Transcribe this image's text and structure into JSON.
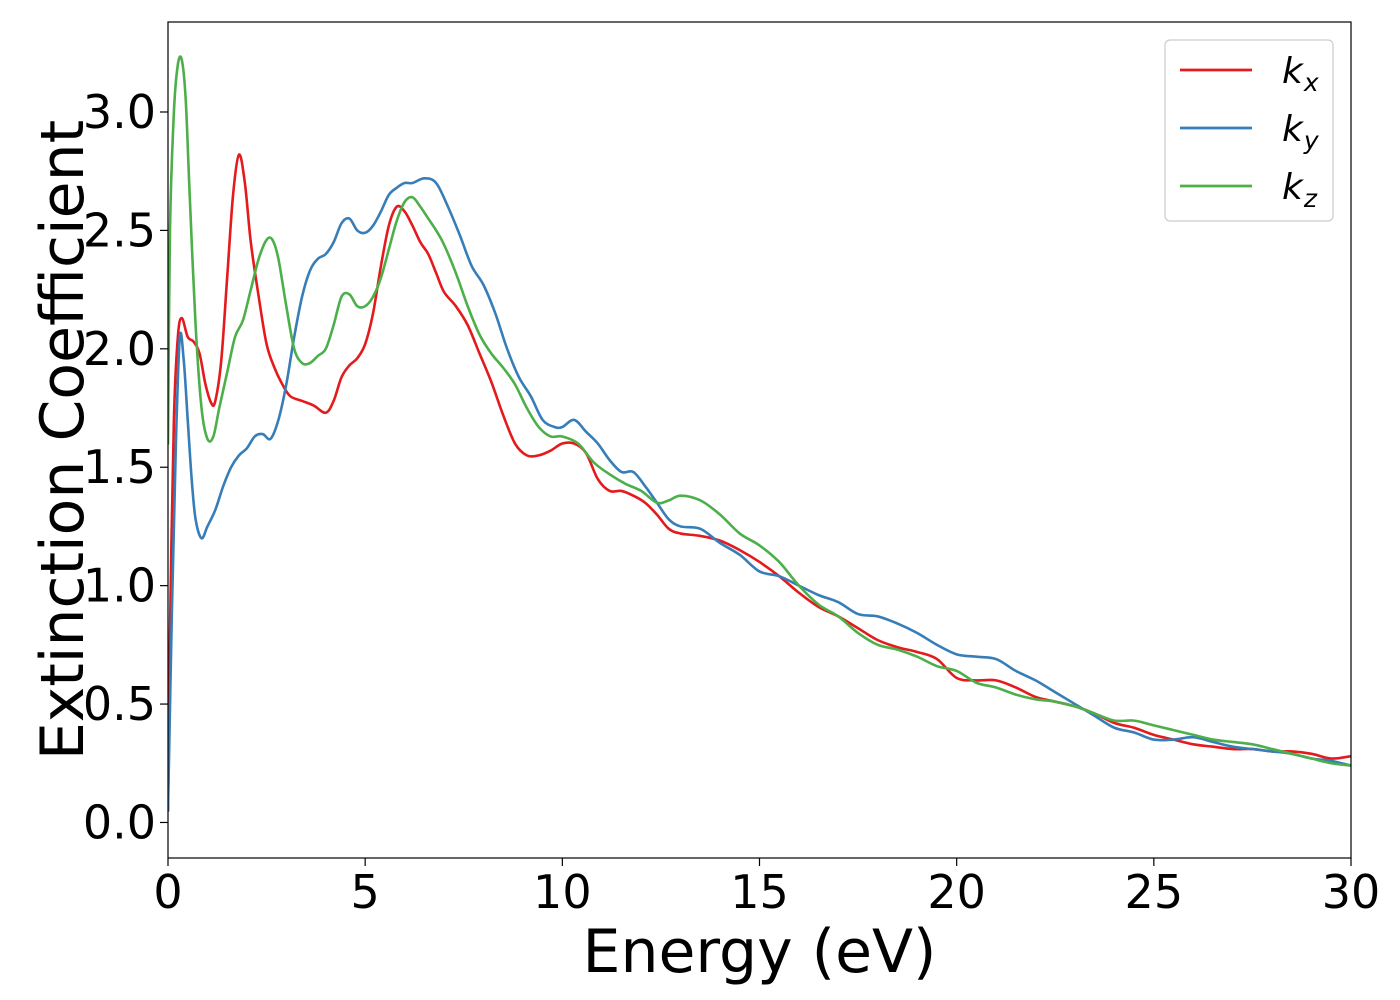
{
  "chart_data": {
    "type": "line",
    "title": "",
    "xlabel": "Energy (eV)",
    "ylabel": "Extinction Coefficient",
    "xlim": [
      0,
      30
    ],
    "ylim": [
      -0.15,
      3.38
    ],
    "xticks": [
      0,
      5,
      10,
      15,
      20,
      25,
      30
    ],
    "xtick_labels": [
      "0",
      "5",
      "10",
      "15",
      "20",
      "25",
      "30"
    ],
    "yticks": [
      0.0,
      0.5,
      1.0,
      1.5,
      2.0,
      2.5,
      3.0
    ],
    "ytick_labels": [
      "0.0",
      "0.5",
      "1.0",
      "1.5",
      "2.0",
      "2.5",
      "3.0"
    ],
    "grid": false,
    "legend_position": "top-right",
    "series": [
      {
        "name": "k_x",
        "label_base": "k",
        "label_sub": "x",
        "color": "#e41a1c",
        "x": [
          0,
          0.05,
          0.15,
          0.25,
          0.35,
          0.5,
          0.65,
          0.8,
          0.95,
          1.1,
          1.2,
          1.35,
          1.5,
          1.65,
          1.8,
          1.95,
          2.1,
          2.3,
          2.5,
          2.7,
          2.9,
          3.1,
          3.4,
          3.7,
          4.0,
          4.2,
          4.4,
          4.6,
          4.8,
          5.0,
          5.2,
          5.4,
          5.6,
          5.8,
          6.0,
          6.2,
          6.4,
          6.6,
          6.8,
          7.0,
          7.3,
          7.6,
          7.9,
          8.2,
          8.5,
          8.8,
          9.1,
          9.4,
          9.7,
          10.0,
          10.3,
          10.6,
          10.9,
          11.2,
          11.5,
          11.8,
          12.1,
          12.4,
          12.7,
          13.0,
          13.5,
          14.0,
          14.5,
          15.0,
          15.5,
          16.0,
          16.5,
          17.0,
          17.5,
          18.0,
          18.5,
          19.0,
          19.5,
          20.0,
          20.5,
          21.0,
          21.5,
          22.0,
          22.5,
          23.0,
          23.5,
          24.0,
          24.5,
          25.0,
          25.5,
          26.0,
          26.5,
          27.0,
          27.5,
          28.0,
          28.5,
          29.0,
          29.5,
          30.0
        ],
        "y": [
          0.05,
          0.8,
          1.7,
          2.05,
          2.13,
          2.05,
          2.03,
          1.98,
          1.85,
          1.77,
          1.78,
          1.95,
          2.3,
          2.65,
          2.82,
          2.7,
          2.45,
          2.22,
          2.02,
          1.92,
          1.85,
          1.8,
          1.78,
          1.76,
          1.73,
          1.78,
          1.88,
          1.93,
          1.96,
          2.02,
          2.15,
          2.35,
          2.52,
          2.6,
          2.58,
          2.52,
          2.45,
          2.4,
          2.32,
          2.24,
          2.18,
          2.1,
          1.98,
          1.86,
          1.72,
          1.6,
          1.55,
          1.55,
          1.57,
          1.6,
          1.6,
          1.56,
          1.45,
          1.4,
          1.4,
          1.38,
          1.35,
          1.3,
          1.24,
          1.22,
          1.21,
          1.19,
          1.15,
          1.1,
          1.04,
          0.97,
          0.91,
          0.87,
          0.82,
          0.77,
          0.74,
          0.72,
          0.69,
          0.61,
          0.6,
          0.6,
          0.57,
          0.53,
          0.51,
          0.49,
          0.46,
          0.42,
          0.4,
          0.37,
          0.35,
          0.33,
          0.32,
          0.31,
          0.31,
          0.3,
          0.3,
          0.29,
          0.27,
          0.28
        ]
      },
      {
        "name": "k_y",
        "label_base": "k",
        "label_sub": "y",
        "color": "#377eb8",
        "x": [
          0,
          0.1,
          0.2,
          0.3,
          0.4,
          0.5,
          0.6,
          0.7,
          0.85,
          1.0,
          1.2,
          1.4,
          1.6,
          1.8,
          2.0,
          2.2,
          2.4,
          2.6,
          2.8,
          3.0,
          3.2,
          3.4,
          3.6,
          3.8,
          4.0,
          4.2,
          4.4,
          4.6,
          4.8,
          5.0,
          5.2,
          5.4,
          5.6,
          5.8,
          6.0,
          6.2,
          6.5,
          6.8,
          7.1,
          7.4,
          7.7,
          8.0,
          8.3,
          8.6,
          8.9,
          9.2,
          9.5,
          9.8,
          10.0,
          10.3,
          10.6,
          10.9,
          11.2,
          11.5,
          11.8,
          12.1,
          12.4,
          12.7,
          13.0,
          13.5,
          14.0,
          14.5,
          15.0,
          15.5,
          16.0,
          16.5,
          17.0,
          17.5,
          18.0,
          18.5,
          19.0,
          19.5,
          20.0,
          20.5,
          21.0,
          21.5,
          22.0,
          22.5,
          23.0,
          23.5,
          24.0,
          24.5,
          25.0,
          25.5,
          26.0,
          26.5,
          27.0,
          27.5,
          28.0,
          28.5,
          29.0,
          29.5,
          30.0
        ],
        "y": [
          0.05,
          0.9,
          1.6,
          2.05,
          1.95,
          1.7,
          1.45,
          1.28,
          1.2,
          1.25,
          1.32,
          1.42,
          1.5,
          1.55,
          1.58,
          1.63,
          1.64,
          1.62,
          1.7,
          1.85,
          2.05,
          2.22,
          2.33,
          2.38,
          2.4,
          2.45,
          2.53,
          2.55,
          2.5,
          2.49,
          2.52,
          2.58,
          2.65,
          2.68,
          2.7,
          2.7,
          2.72,
          2.7,
          2.6,
          2.48,
          2.35,
          2.27,
          2.15,
          2.0,
          1.88,
          1.8,
          1.7,
          1.67,
          1.67,
          1.7,
          1.65,
          1.6,
          1.53,
          1.48,
          1.48,
          1.42,
          1.35,
          1.28,
          1.25,
          1.24,
          1.18,
          1.13,
          1.06,
          1.04,
          1.0,
          0.96,
          0.93,
          0.88,
          0.87,
          0.84,
          0.8,
          0.75,
          0.71,
          0.7,
          0.69,
          0.64,
          0.6,
          0.55,
          0.5,
          0.45,
          0.4,
          0.38,
          0.35,
          0.35,
          0.36,
          0.34,
          0.32,
          0.31,
          0.3,
          0.29,
          0.27,
          0.26,
          0.24
        ]
      },
      {
        "name": "k_z",
        "label_base": "k",
        "label_sub": "z",
        "color": "#4daf4a",
        "x": [
          0,
          0.05,
          0.15,
          0.25,
          0.35,
          0.45,
          0.55,
          0.7,
          0.85,
          1.0,
          1.15,
          1.3,
          1.5,
          1.7,
          1.9,
          2.1,
          2.3,
          2.5,
          2.65,
          2.8,
          3.0,
          3.2,
          3.4,
          3.6,
          3.8,
          4.0,
          4.2,
          4.4,
          4.6,
          4.8,
          5.0,
          5.2,
          5.4,
          5.6,
          5.8,
          6.0,
          6.2,
          6.4,
          6.6,
          6.8,
          7.0,
          7.3,
          7.6,
          7.9,
          8.2,
          8.5,
          8.8,
          9.1,
          9.4,
          9.7,
          10.0,
          10.4,
          10.8,
          11.2,
          11.6,
          12.0,
          12.4,
          12.7,
          13.0,
          13.5,
          14.0,
          14.5,
          15.0,
          15.5,
          16.0,
          16.5,
          17.0,
          17.5,
          18.0,
          18.5,
          19.0,
          19.5,
          20.0,
          20.5,
          21.0,
          21.5,
          22.0,
          22.5,
          23.0,
          23.5,
          24.0,
          24.5,
          25.0,
          25.5,
          26.0,
          26.5,
          27.0,
          27.5,
          28.0,
          28.5,
          29.0,
          29.5,
          30.0
        ],
        "y": [
          1.6,
          2.5,
          3.0,
          3.2,
          3.22,
          3.05,
          2.65,
          2.1,
          1.75,
          1.62,
          1.63,
          1.75,
          1.9,
          2.05,
          2.12,
          2.25,
          2.38,
          2.46,
          2.46,
          2.38,
          2.18,
          2.0,
          1.94,
          1.94,
          1.97,
          2.0,
          2.1,
          2.22,
          2.23,
          2.18,
          2.18,
          2.22,
          2.3,
          2.42,
          2.54,
          2.62,
          2.64,
          2.6,
          2.55,
          2.5,
          2.44,
          2.32,
          2.18,
          2.06,
          1.98,
          1.92,
          1.85,
          1.75,
          1.67,
          1.63,
          1.63,
          1.6,
          1.52,
          1.47,
          1.43,
          1.4,
          1.35,
          1.36,
          1.38,
          1.36,
          1.3,
          1.22,
          1.17,
          1.1,
          1.0,
          0.92,
          0.87,
          0.8,
          0.75,
          0.73,
          0.7,
          0.66,
          0.64,
          0.59,
          0.57,
          0.54,
          0.52,
          0.51,
          0.49,
          0.46,
          0.43,
          0.43,
          0.41,
          0.39,
          0.37,
          0.35,
          0.34,
          0.33,
          0.31,
          0.29,
          0.27,
          0.25,
          0.24
        ]
      }
    ]
  }
}
